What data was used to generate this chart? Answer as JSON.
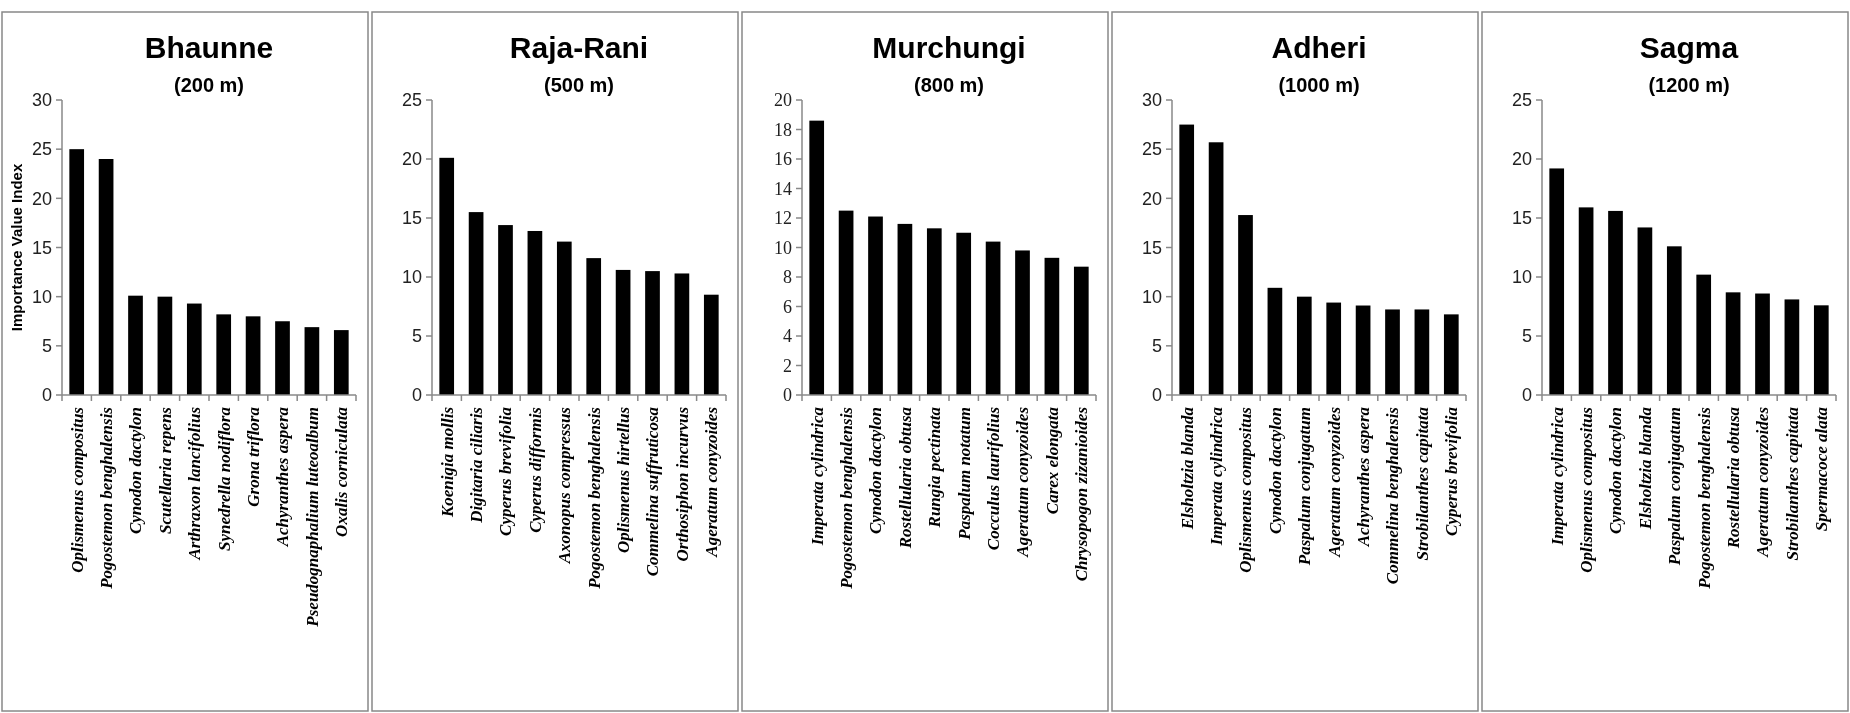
{
  "chart_data": [
    {
      "type": "bar",
      "title": "Bhaunne",
      "subtitle": "(200 m)",
      "ylabel": "Importance Value Index",
      "categories": [
        "Oplismenus compositus",
        "Pogostemon benghalensis",
        "Cynodon dactylon",
        "Scutellaria repens",
        "Arthraxon lancifolius",
        "Synedrella nodiflora",
        "Grona triflora",
        "Achyranthes aspera",
        "Pseudognaphalium luteoalbum",
        "Oxalis corniculata"
      ],
      "values": [
        25,
        24,
        10.1,
        10,
        9.3,
        8.2,
        8,
        7.5,
        6.9,
        6.6
      ],
      "color": "#000000",
      "ylim": [
        0,
        30
      ],
      "yticks": [
        0,
        5,
        10,
        15,
        20,
        25,
        30
      ]
    },
    {
      "type": "bar",
      "title": "Raja-Rani",
      "subtitle": "(500 m)",
      "categories": [
        "Koenigia mollis",
        "Digitaria ciliaris",
        "Cyperus brevifolia",
        "Cyperus difformis",
        "Axonopus compressus",
        "Pogostemon benghalensis",
        "Oplismenus hirtellus",
        "Commelina suffruticosa",
        "Orthosiphon incurvus",
        "Ageratum conyzoides"
      ],
      "values": [
        20.1,
        15.5,
        14.4,
        13.9,
        13,
        11.6,
        10.6,
        10.5,
        10.3,
        8.5
      ],
      "color": "#000000",
      "ylim": [
        0,
        25
      ],
      "yticks": [
        0,
        5,
        10,
        15,
        20,
        25
      ]
    },
    {
      "type": "bar",
      "title": "Murchungi",
      "subtitle": "(800 m)",
      "categories": [
        "Imperata cylindrica",
        "Pogostemon benghalensis",
        "Cynodon dactylon",
        "Rostellularia obtusa",
        "Rungia pectinata",
        "Paspalum notatum",
        "Cocculus laurifolius",
        "Ageratum conyzoides",
        "Carex elongata",
        "Chrysopogon zizanioides"
      ],
      "values": [
        18.6,
        12.5,
        12.1,
        11.6,
        11.3,
        11,
        10.4,
        9.8,
        9.3,
        8.7
      ],
      "color": "#000000",
      "ylim": [
        0,
        20
      ],
      "yticks": [
        0,
        2,
        4,
        6,
        8,
        10,
        12,
        14,
        16,
        18,
        20
      ]
    },
    {
      "type": "bar",
      "title": "Adheri",
      "subtitle": "(1000 m)",
      "categories": [
        "Elsholtzia blanda",
        "Imperata cylindrica",
        "Oplismenus compositus",
        "Cynodon dactylon",
        "Paspalum conjugatum",
        "Ageratum conyzoides",
        "Achyranthes aspera",
        "Commelina benghalensis",
        "Strobilanthes capitata",
        "Cyperus brevifolia"
      ],
      "values": [
        27.5,
        25.7,
        18.3,
        10.9,
        10,
        9.4,
        9.1,
        8.7,
        8.7,
        8.2
      ],
      "color": "#000000",
      "ylim": [
        0,
        30
      ],
      "yticks": [
        0,
        5,
        10,
        15,
        20,
        25,
        30
      ]
    },
    {
      "type": "bar",
      "title": "Sagma",
      "subtitle": "(1200 m)",
      "categories": [
        "Imperata cylindrica",
        "Oplismenus compositus",
        "Cynodon dactylon",
        "Elsholtzia blanda",
        "Paspalum conjugatum",
        "Pogostemon benghalensis",
        "Rostellularia obtusa",
        "Ageratum conyzoides",
        "Strobilanthes capitata",
        "Spermacoce alata"
      ],
      "values": [
        19.2,
        15.9,
        15.6,
        14.2,
        12.6,
        10.2,
        8.7,
        8.6,
        8.1,
        7.6
      ],
      "color": "#000000",
      "ylim": [
        0,
        25
      ],
      "yticks": [
        0,
        5,
        10,
        15,
        20,
        25
      ]
    }
  ]
}
